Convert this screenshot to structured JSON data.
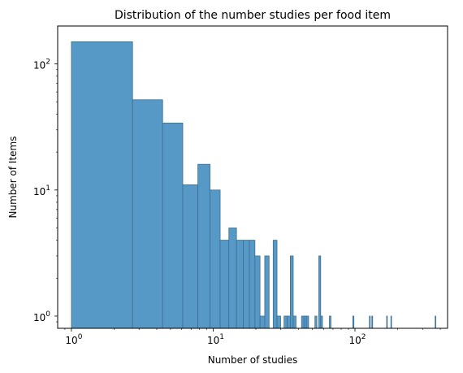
{
  "chart_data": {
    "type": "bar",
    "title": "Distribution of the number studies per food item",
    "xlabel": "Number of studies",
    "ylabel": "Number of Items",
    "x_scale": "log",
    "y_scale": "log",
    "xlim": [
      0.8,
      450
    ],
    "ylim": [
      0.8,
      200
    ],
    "x_ticks": [
      {
        "value": 1,
        "base": "10",
        "exp": "0"
      },
      {
        "value": 10,
        "base": "10",
        "exp": "1"
      },
      {
        "value": 100,
        "base": "10",
        "exp": "2"
      }
    ],
    "y_ticks": [
      {
        "value": 1,
        "base": "10",
        "exp": "0"
      },
      {
        "value": 10,
        "base": "10",
        "exp": "1"
      },
      {
        "value": 100,
        "base": "10",
        "exp": "2"
      }
    ],
    "grid": false,
    "bar_color": "#5799c6",
    "edge_color": "#3d6e91",
    "bins": [
      {
        "x0": 1.0,
        "x1": 2.7,
        "count": 150
      },
      {
        "x0": 2.7,
        "x1": 4.4,
        "count": 52
      },
      {
        "x0": 4.4,
        "x1": 6.1,
        "count": 34
      },
      {
        "x0": 6.1,
        "x1": 7.8,
        "count": 11
      },
      {
        "x0": 7.8,
        "x1": 9.5,
        "count": 16
      },
      {
        "x0": 9.5,
        "x1": 11.2,
        "count": 10
      },
      {
        "x0": 11.2,
        "x1": 12.9,
        "count": 4
      },
      {
        "x0": 12.9,
        "x1": 14.6,
        "count": 5
      },
      {
        "x0": 14.6,
        "x1": 16.3,
        "count": 4
      },
      {
        "x0": 16.3,
        "x1": 18.0,
        "count": 4
      },
      {
        "x0": 18.0,
        "x1": 19.7,
        "count": 4
      },
      {
        "x0": 19.7,
        "x1": 21.4,
        "count": 3
      },
      {
        "x0": 21.4,
        "x1": 23.1,
        "count": 1
      },
      {
        "x0": 23.1,
        "x1": 24.8,
        "count": 3
      },
      {
        "x0": 26.5,
        "x1": 28.2,
        "count": 4
      },
      {
        "x0": 28.2,
        "x1": 29.9,
        "count": 1
      },
      {
        "x0": 31.6,
        "x1": 33.3,
        "count": 1
      },
      {
        "x0": 33.3,
        "x1": 35.0,
        "count": 1
      },
      {
        "x0": 35.0,
        "x1": 36.7,
        "count": 3
      },
      {
        "x0": 36.7,
        "x1": 38.4,
        "count": 1
      },
      {
        "x0": 42.0,
        "x1": 43.7,
        "count": 1
      },
      {
        "x0": 43.7,
        "x1": 45.4,
        "count": 1
      },
      {
        "x0": 45.4,
        "x1": 47.1,
        "count": 1
      },
      {
        "x0": 52.2,
        "x1": 53.9,
        "count": 1
      },
      {
        "x0": 55.6,
        "x1": 57.3,
        "count": 3
      },
      {
        "x0": 57.3,
        "x1": 59.0,
        "count": 1
      },
      {
        "x0": 66.0,
        "x1": 67.7,
        "count": 1
      },
      {
        "x0": 96.6,
        "x1": 98.3,
        "count": 1
      },
      {
        "x0": 126.5,
        "x1": 128.2,
        "count": 1
      },
      {
        "x0": 131.6,
        "x1": 133.3,
        "count": 1
      },
      {
        "x0": 167.3,
        "x1": 169.0,
        "count": 1
      },
      {
        "x0": 179.2,
        "x1": 180.9,
        "count": 1
      },
      {
        "x0": 367.9,
        "x1": 369.6,
        "count": 1
      }
    ]
  }
}
